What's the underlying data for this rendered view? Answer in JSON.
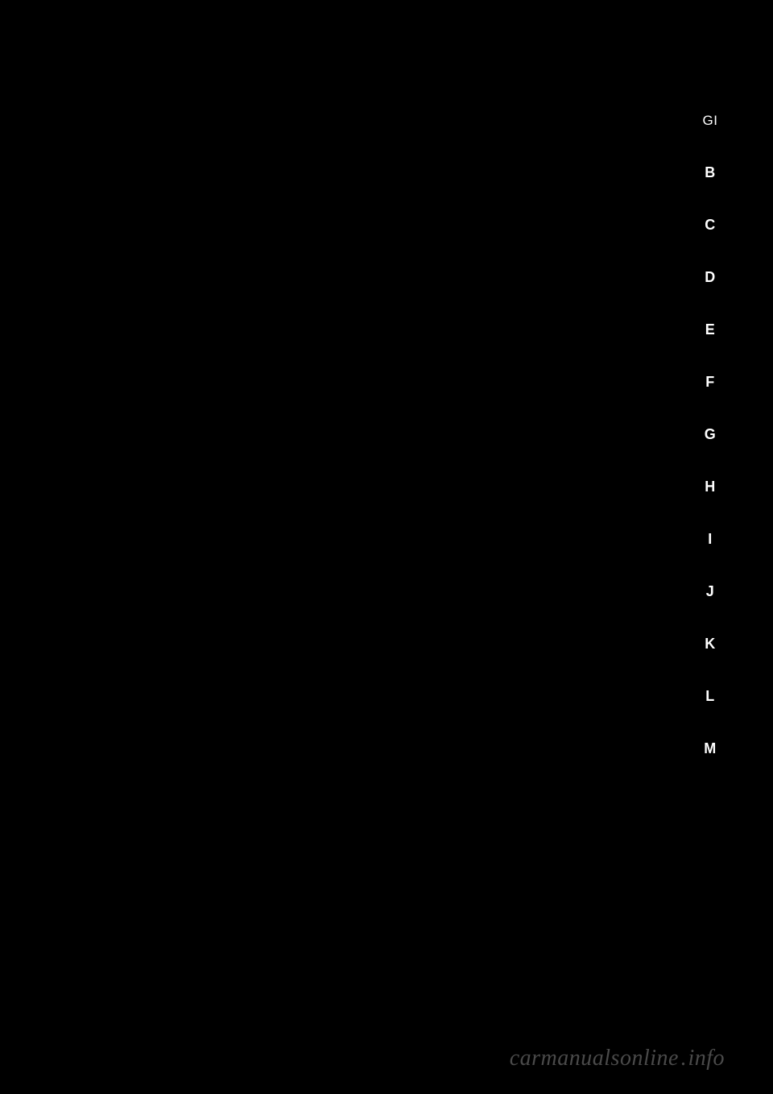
{
  "tabs": [
    {
      "label": "GI",
      "active": true
    },
    {
      "label": "B",
      "active": false
    },
    {
      "label": "C",
      "active": false
    },
    {
      "label": "D",
      "active": false
    },
    {
      "label": "E",
      "active": false
    },
    {
      "label": "F",
      "active": false
    },
    {
      "label": "G",
      "active": false
    },
    {
      "label": "H",
      "active": false
    },
    {
      "label": "I",
      "active": false
    },
    {
      "label": "J",
      "active": false
    },
    {
      "label": "K",
      "active": false
    },
    {
      "label": "L",
      "active": false
    },
    {
      "label": "M",
      "active": false
    }
  ],
  "watermark": {
    "text_part1": "carmanualsonline",
    "separator": ".",
    "text_part2": "info"
  },
  "colors": {
    "background": "#000000",
    "tab_text": "#ffffff",
    "watermark_text": "#4a4a4a"
  }
}
